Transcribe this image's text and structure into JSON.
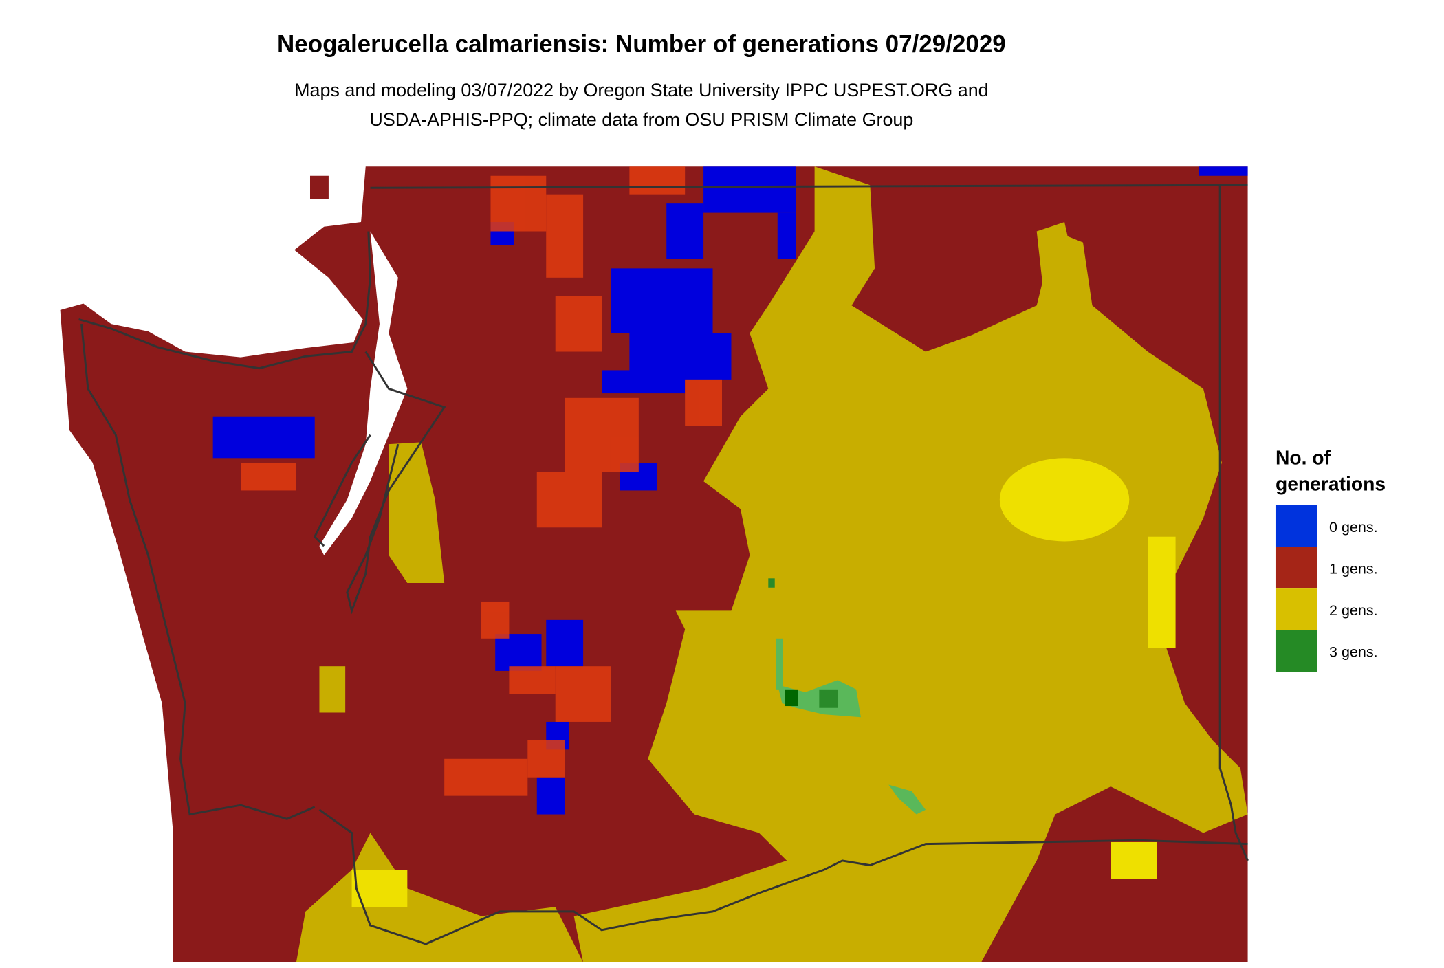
{
  "title": "Neogalerucella calmariensis: Number of generations 07/29/2029",
  "subtitle": {
    "line1": "Maps and modeling 03/07/2022 by Oregon State University IPPC USPEST.ORG and",
    "line2": "USDA-APHIS-PPQ; climate data from OSU PRISM Climate Group"
  },
  "legend": {
    "title_line1": "No. of",
    "title_line2": "generations",
    "items": [
      {
        "label": "0 gens.",
        "color": "#0033dd"
      },
      {
        "label": "1 gens.",
        "color": "#a52517"
      },
      {
        "label": "2 gens.",
        "color": "#d8c000"
      },
      {
        "label": "3 gens.",
        "color": "#258a25"
      }
    ]
  },
  "map_colors": {
    "zero": "#0000dd",
    "one": "#8b1a1a",
    "one_high": "#e03c10",
    "two": "#c8ae00",
    "two_high": "#eee000",
    "three": "#2a8a2a",
    "three_light": "#5ab85a",
    "boundary": "#333333"
  }
}
